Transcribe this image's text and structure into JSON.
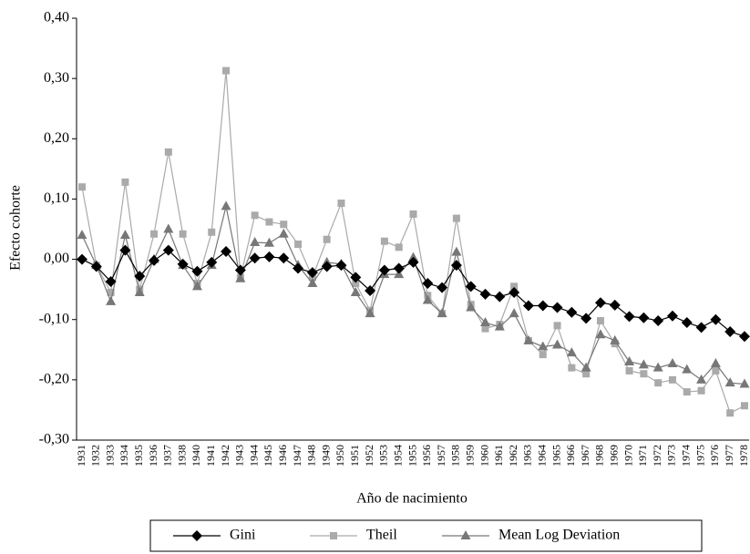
{
  "chart_data": {
    "type": "line",
    "ylabel": "Efecto cohorte",
    "xlabel": "Año de nacimiento",
    "categories": [
      "1931",
      "1932",
      "1933",
      "1934",
      "1935",
      "1936",
      "1937",
      "1938",
      "1940",
      "1941",
      "1942",
      "1943",
      "1944",
      "1945",
      "1946",
      "1947",
      "1948",
      "1949",
      "1950",
      "1951",
      "1952",
      "1953",
      "1954",
      "1955",
      "1956",
      "1957",
      "1958",
      "1959",
      "1960",
      "1961",
      "1962",
      "1963",
      "1964",
      "1965",
      "1966",
      "1967",
      "1968",
      "1969",
      "1970",
      "1971",
      "1972",
      "1973",
      "1974",
      "1975",
      "1976",
      "1977",
      "1978"
    ],
    "series": [
      {
        "name": "Gini",
        "color": "#000000",
        "marker": "diamond",
        "values": [
          0,
          -0.012,
          -0.037,
          0.015,
          -0.028,
          -0.002,
          0.015,
          -0.008,
          -0.02,
          -0.005,
          0.013,
          -0.018,
          0.002,
          0.004,
          0.002,
          -0.015,
          -0.022,
          -0.012,
          -0.01,
          -0.03,
          -0.052,
          -0.018,
          -0.015,
          -0.005,
          -0.04,
          -0.047,
          -0.01,
          -0.045,
          -0.058,
          -0.062,
          -0.055,
          -0.077,
          -0.077,
          -0.08,
          -0.088,
          -0.098,
          -0.072,
          -0.076,
          -0.095,
          -0.097,
          -0.102,
          -0.094,
          -0.105,
          -0.113,
          -0.1,
          -0.12,
          -0.128
        ]
      },
      {
        "name": "Theil",
        "color": "#aaaaaa",
        "marker": "square",
        "values": [
          0.12,
          -0.01,
          -0.055,
          0.128,
          -0.05,
          0.042,
          0.178,
          0.042,
          -0.04,
          0.045,
          0.313,
          -0.03,
          0.073,
          0.062,
          0.058,
          0.025,
          -0.03,
          0.033,
          0.093,
          -0.04,
          -0.085,
          0.03,
          0.02,
          0.075,
          -0.06,
          -0.09,
          0.068,
          -0.075,
          -0.115,
          -0.108,
          -0.045,
          -0.135,
          -0.158,
          -0.11,
          -0.18,
          -0.19,
          -0.102,
          -0.14,
          -0.185,
          -0.19,
          -0.205,
          -0.2,
          -0.22,
          -0.218,
          -0.185,
          -0.255,
          -0.243
        ]
      },
      {
        "name": "Mean Log Deviation",
        "color": "#777777",
        "marker": "triangle",
        "values": [
          0.04,
          -0.01,
          -0.07,
          0.04,
          -0.055,
          0,
          0.05,
          -0.01,
          -0.045,
          -0.01,
          0.088,
          -0.032,
          0.028,
          0.027,
          0.042,
          -0.01,
          -0.04,
          -0.005,
          -0.008,
          -0.055,
          -0.09,
          -0.025,
          -0.025,
          0.003,
          -0.068,
          -0.09,
          0.012,
          -0.08,
          -0.105,
          -0.112,
          -0.09,
          -0.135,
          -0.145,
          -0.142,
          -0.155,
          -0.18,
          -0.125,
          -0.135,
          -0.17,
          -0.175,
          -0.18,
          -0.173,
          -0.183,
          -0.2,
          -0.173,
          -0.205,
          -0.207
        ]
      }
    ],
    "ylim": [
      -0.3,
      0.4
    ],
    "yticks": [
      {
        "value": -0.3,
        "label": "-0,30"
      },
      {
        "value": -0.2,
        "label": "-0,20"
      },
      {
        "value": -0.1,
        "label": "-0,10"
      },
      {
        "value": 0,
        "label": "0,00"
      },
      {
        "value": 0.1,
        "label": "0,10"
      },
      {
        "value": 0.2,
        "label": "0,20"
      },
      {
        "value": 0.3,
        "label": "0,30"
      },
      {
        "value": 0.4,
        "label": "0,40"
      }
    ],
    "legend": "bottom"
  }
}
